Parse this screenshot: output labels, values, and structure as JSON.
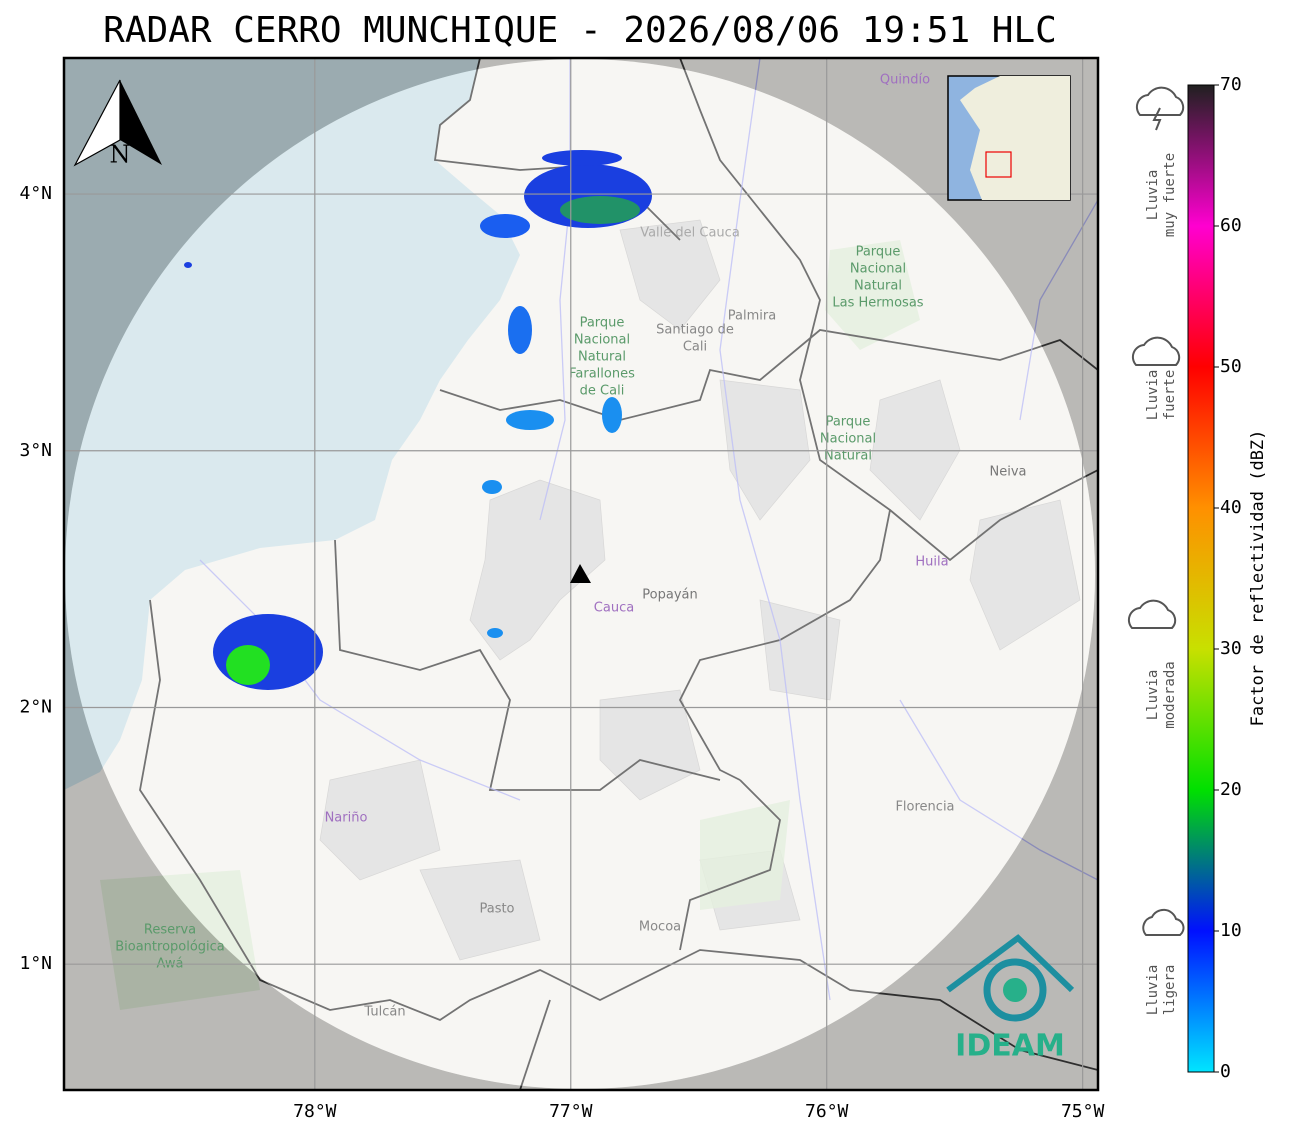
{
  "title": "RADAR CERRO MUNCHIQUE - 2026/08/06 19:51 HLC",
  "map": {
    "xlim": [
      -78.98,
      -74.94
    ],
    "ylim": [
      0.51,
      4.53
    ],
    "xticks": [
      {
        "value": -78,
        "label": "78°W"
      },
      {
        "value": -77,
        "label": "77°W"
      },
      {
        "value": -76,
        "label": "76°W"
      },
      {
        "value": -75,
        "label": "75°W"
      }
    ],
    "yticks": [
      {
        "value": 1,
        "label": "1°N"
      },
      {
        "value": 2,
        "label": "2°N"
      },
      {
        "value": 3,
        "label": "3°N"
      },
      {
        "value": 4,
        "label": "4°N"
      }
    ],
    "compass": "N",
    "logo": "IDEAM",
    "places": [
      {
        "lines": [
          "Quindío"
        ]
      },
      {
        "lines": [
          "Valle del Cauca"
        ]
      },
      {
        "lines": [
          "Parque",
          "Nacional",
          "Natural",
          "Las Hermosas"
        ]
      },
      {
        "lines": [
          "Santiago de",
          "Cali"
        ]
      },
      {
        "lines": [
          "Palmira"
        ]
      },
      {
        "lines": [
          "Parque",
          "Nacional",
          "Natural",
          "Farallones",
          "de Cali"
        ]
      },
      {
        "lines": [
          "Parque",
          "Nacional",
          "Natural"
        ]
      },
      {
        "lines": [
          "Neiva"
        ]
      },
      {
        "lines": [
          "Huila"
        ]
      },
      {
        "lines": [
          "Cauca"
        ]
      },
      {
        "lines": [
          "Popayán"
        ]
      },
      {
        "lines": [
          "Nariño"
        ]
      },
      {
        "lines": [
          "Florencia"
        ]
      },
      {
        "lines": [
          "Pasto"
        ]
      },
      {
        "lines": [
          "Mocoa"
        ]
      },
      {
        "lines": [
          "Tulcán"
        ]
      },
      {
        "lines": [
          "Reserva",
          "Bioantropológica",
          "Awá"
        ]
      }
    ]
  },
  "colorbar": {
    "label": "Factor de reflectividad (dBZ)",
    "lim": [
      0,
      70
    ],
    "ticks": [
      0,
      10,
      20,
      30,
      40,
      50,
      60,
      70
    ],
    "colors": [
      "#00e5ff",
      "#0010ff",
      "#00e000",
      "#c8e000",
      "#ff9000",
      "#ff0000",
      "#ff00d0",
      "#202020"
    ]
  },
  "rain_classes": [
    {
      "lines": [
        "Lluvia",
        "muy fuerte"
      ]
    },
    {
      "lines": [
        "Lluvia",
        "fuerte"
      ]
    },
    {
      "lines": [
        "Lluvia",
        "moderada"
      ]
    },
    {
      "lines": [
        "Lluvia",
        "ligera"
      ]
    }
  ]
}
